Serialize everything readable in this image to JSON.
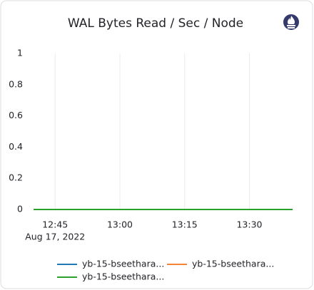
{
  "chart_data": {
    "type": "line",
    "title": "WAL Bytes Read / Sec / Node",
    "x": [
      "12:40",
      "12:45",
      "12:50",
      "12:55",
      "13:00",
      "13:05",
      "13:10",
      "13:15",
      "13:20",
      "13:25",
      "13:30",
      "13:35",
      "13:40"
    ],
    "xlim": [
      "12:40",
      "13:40"
    ],
    "xticks": [
      "12:45",
      "13:00",
      "13:15",
      "13:30"
    ],
    "x_date_label": "Aug 17, 2022",
    "ylim": [
      0,
      1
    ],
    "yticks": [
      0,
      0.2,
      0.4,
      0.6,
      0.8,
      1
    ],
    "grid": "x",
    "series": [
      {
        "name": "yb-15-bseethara...",
        "color": "#1f77b4",
        "values": [
          0,
          0,
          0,
          0,
          0,
          0,
          0,
          0,
          0,
          0,
          0,
          0,
          0
        ]
      },
      {
        "name": "yb-15-bseethara...",
        "color": "#f58536",
        "values": [
          0,
          0,
          0,
          0,
          0,
          0,
          0,
          0,
          0,
          0,
          0,
          0,
          0
        ]
      },
      {
        "name": "yb-15-bseethara...",
        "color": "#2ca02c",
        "values": [
          0,
          0,
          0,
          0,
          0,
          0,
          0,
          0,
          0,
          0,
          0,
          0,
          0
        ]
      }
    ]
  }
}
